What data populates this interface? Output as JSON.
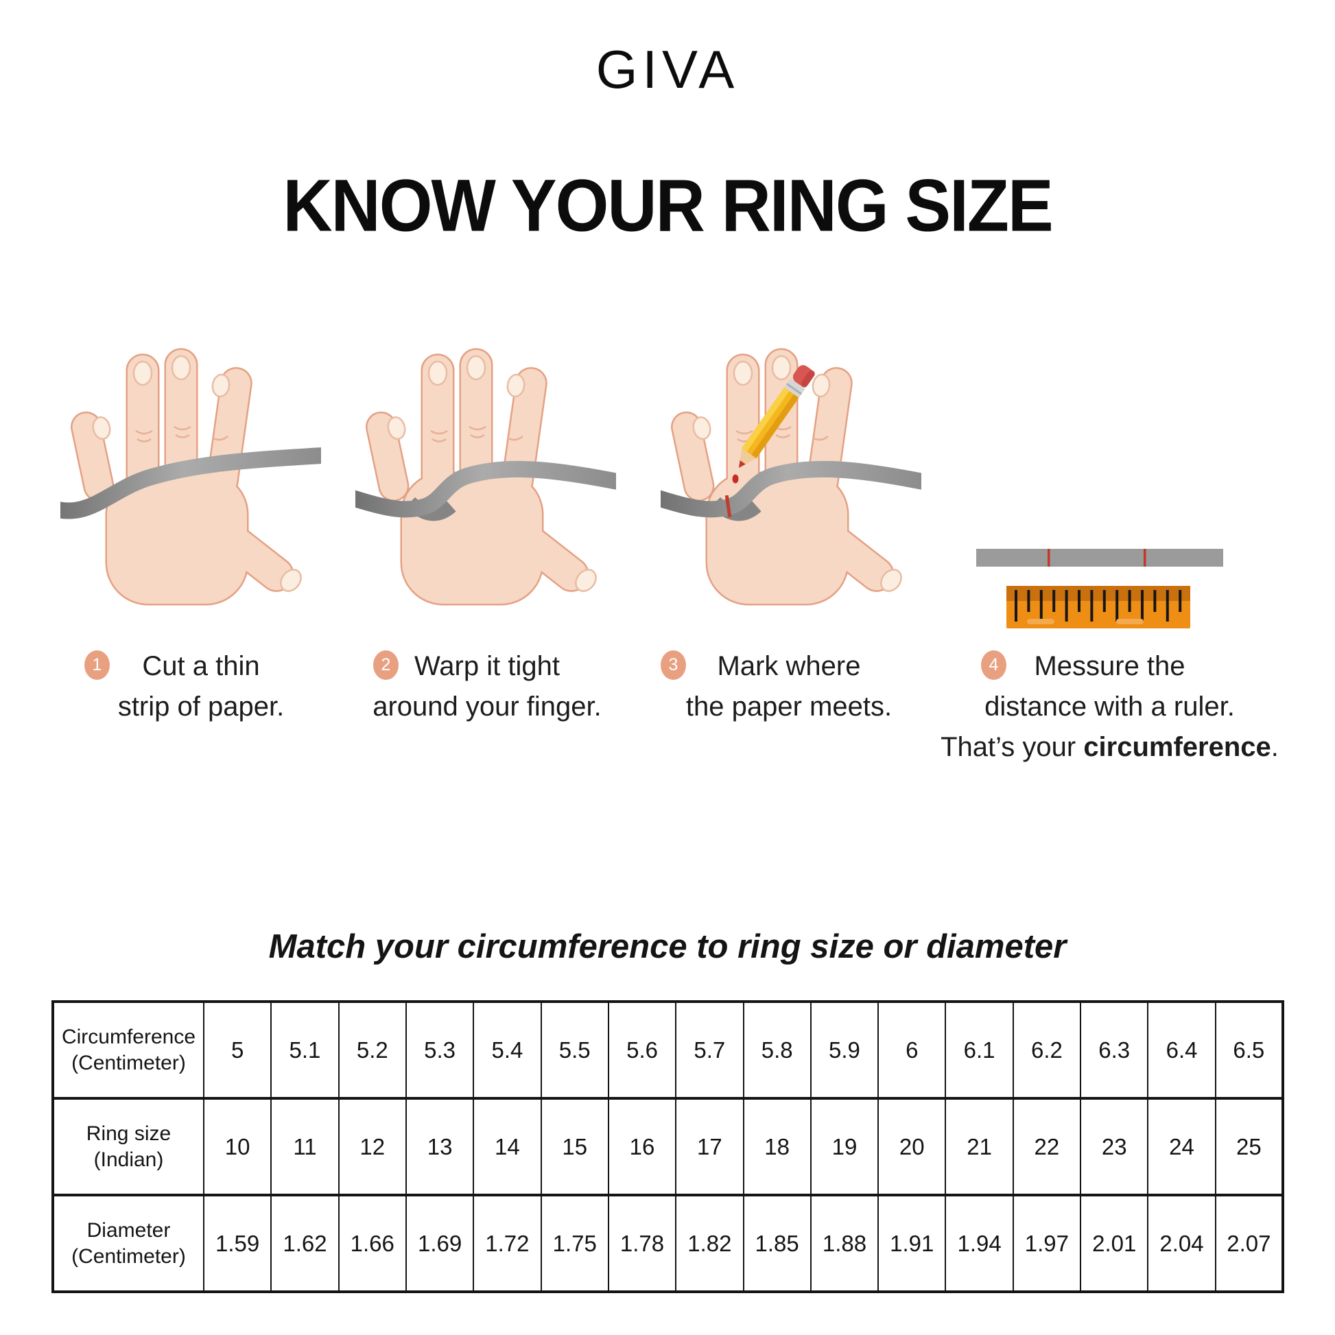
{
  "brand": "GIVA",
  "title": "KNOW YOUR RING SIZE",
  "steps": [
    {
      "num": "1",
      "line1": "Cut a thin",
      "line2": "strip of paper."
    },
    {
      "num": "2",
      "line1": "Warp it tight",
      "line2": "around your finger."
    },
    {
      "num": "3",
      "line1": "Mark where",
      "line2": "the paper meets."
    },
    {
      "num": "4",
      "line1": "Messure the",
      "line2": "distance with a ruler.",
      "line3_prefix": "That’s your ",
      "line3_bold": "circumference",
      "line3_suffix": "."
    }
  ],
  "match_heading": "Match your circumference to ring size or diameter",
  "size_table": {
    "rows": [
      {
        "label_lines": [
          "Circumference",
          "(Centimeter)"
        ],
        "values": [
          "5",
          "5.1",
          "5.2",
          "5.3",
          "5.4",
          "5.5",
          "5.6",
          "5.7",
          "5.8",
          "5.9",
          "6",
          "6.1",
          "6.2",
          "6.3",
          "6.4",
          "6.5"
        ]
      },
      {
        "label_lines": [
          "Ring size",
          "(Indian)"
        ],
        "values": [
          "10",
          "11",
          "12",
          "13",
          "14",
          "15",
          "16",
          "17",
          "18",
          "19",
          "20",
          "21",
          "22",
          "23",
          "24",
          "25"
        ]
      },
      {
        "label_lines": [
          "Diameter",
          "(Centimeter)"
        ],
        "values": [
          "1.59",
          "1.62",
          "1.66",
          "1.69",
          "1.72",
          "1.75",
          "1.78",
          "1.82",
          "1.85",
          "1.88",
          "1.91",
          "1.94",
          "1.97",
          "2.01",
          "2.04",
          "2.07"
        ]
      }
    ]
  },
  "colors": {
    "badge_peach": "#E8A081",
    "skin": "#F7D8C4",
    "skin_outline": "#E3A184",
    "strip_gray": "#9B9B9B",
    "ruler_orange": "#EE8E15",
    "mark_red": "#C0392B"
  },
  "ruler": {
    "tick_count": 14
  }
}
